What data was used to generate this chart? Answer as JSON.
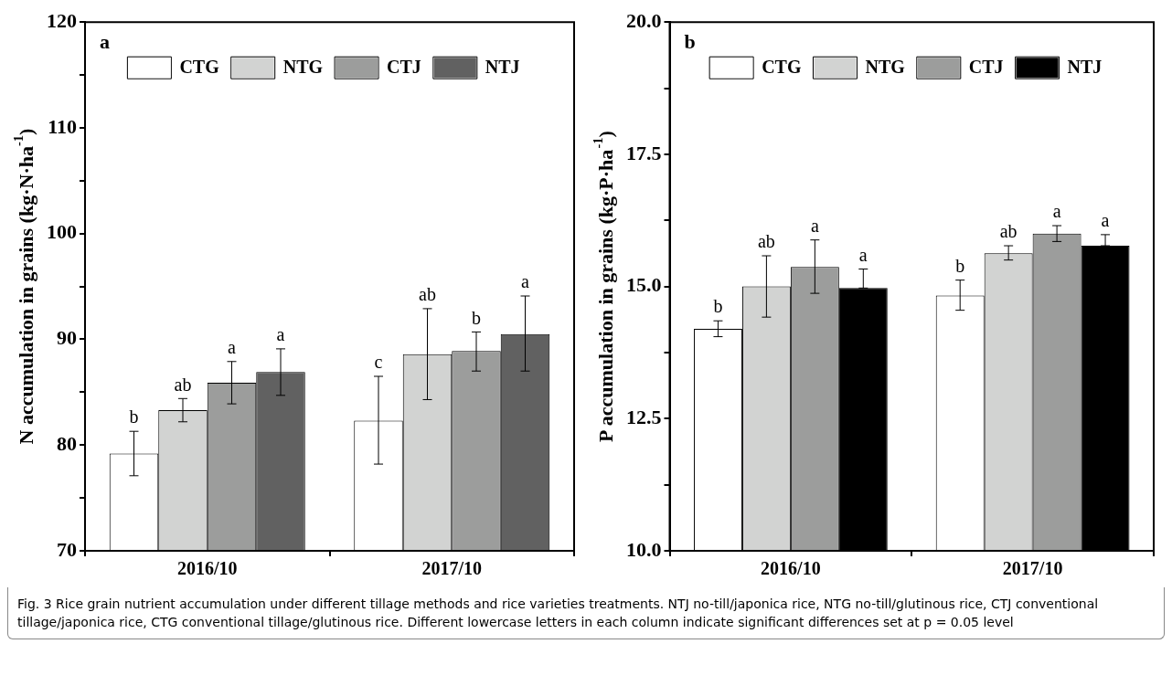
{
  "chart_data": [
    {
      "type": "bar",
      "title": "a",
      "ylabel": "N accumulation in grains (kg·N·ha$^{-1}$)",
      "categories": [
        "2016/10",
        "2017/10"
      ],
      "series": [
        {
          "name": "CTG",
          "color": "#ffffff",
          "values": [
            79.2,
            82.3
          ],
          "errors": [
            [
              77.1,
              81.3
            ],
            [
              78.2,
              86.5
            ]
          ],
          "value_labels": [
            "b",
            "c"
          ]
        },
        {
          "name": "NTG",
          "color": "#d2d3d2",
          "values": [
            83.3,
            88.6
          ],
          "errors": [
            [
              82.2,
              84.4
            ],
            [
              84.3,
              92.9
            ]
          ],
          "value_labels": [
            "ab",
            "ab"
          ]
        },
        {
          "name": "CTJ",
          "color": "#9c9d9c",
          "values": [
            85.9,
            88.9
          ],
          "errors": [
            [
              83.9,
              87.9
            ],
            [
              87.0,
              90.7
            ]
          ],
          "value_labels": [
            "a",
            "b"
          ]
        },
        {
          "name": "NTJ",
          "color": "#616161",
          "values": [
            86.9,
            90.5
          ],
          "errors": [
            [
              84.7,
              89.1
            ],
            [
              87.0,
              94.1
            ]
          ],
          "value_labels": [
            "a",
            "a"
          ]
        }
      ],
      "ylim": [
        70,
        120
      ],
      "yticks": [
        70,
        {
          "value": 75,
          "label": null
        },
        80,
        {
          "value": 85,
          "label": null
        },
        90,
        {
          "value": 95,
          "label": null
        },
        100,
        {
          "value": 105,
          "label": null
        },
        110,
        {
          "value": 115,
          "label": null
        },
        120
      ],
      "legend": "top",
      "grid": false,
      "annotations": [
        "Fig. 3  Rice grain nutrient accumulation under different tillage methods and rice varieties treatments. NTJ no-till/japonica rice, NTG no-till/glutinous rice, CTJ conventional tillage/japonica rice, CTG conventional tillage/glutinous rice. Different lowercase letters in each column indicate significant differences set at p = 0.05 level"
      ]
    },
    {
      "type": "bar",
      "title": "b",
      "ylabel": "P accumulation in grains (kg·P·ha$^{-1}$)",
      "categories": [
        "2016/10",
        "2017/10"
      ],
      "series": [
        {
          "name": "CTG",
          "color": "#ffffff",
          "values": [
            14.2,
            14.83
          ],
          "errors": [
            [
              14.05,
              14.35
            ],
            [
              14.55,
              15.12
            ]
          ],
          "value_labels": [
            "b",
            "b"
          ]
        },
        {
          "name": "NTG",
          "color": "#d2d3d2",
          "values": [
            15.0,
            15.63
          ],
          "errors": [
            [
              14.42,
              15.58
            ],
            [
              15.5,
              15.77
            ]
          ],
          "value_labels": [
            "ab",
            "ab"
          ]
        },
        {
          "name": "CTJ",
          "color": "#9c9d9c",
          "values": [
            15.37,
            16.0
          ],
          "errors": [
            [
              14.87,
              15.88
            ],
            [
              15.85,
              16.15
            ]
          ],
          "value_labels": [
            "a",
            "a"
          ]
        },
        {
          "name": "NTJ",
          "color": "#000000",
          "values": [
            14.97,
            15.77
          ],
          "errors": [
            [
              14.97,
              15.33
            ],
            [
              15.77,
              15.98
            ]
          ],
          "value_labels": [
            "a",
            "a"
          ]
        }
      ],
      "ylim": [
        10,
        20
      ],
      "yticks": [
        {
          "value": 10,
          "label": "10.0"
        },
        {
          "value": 11.25,
          "label": null
        },
        12.5,
        {
          "value": 13.75,
          "label": null
        },
        {
          "value": 15,
          "label": "15.0"
        },
        {
          "value": 16.25,
          "label": null
        },
        17.5,
        {
          "value": 18.75,
          "label": null
        },
        {
          "value": 20,
          "label": "20.0"
        }
      ],
      "legend": "top",
      "grid": false
    }
  ]
}
